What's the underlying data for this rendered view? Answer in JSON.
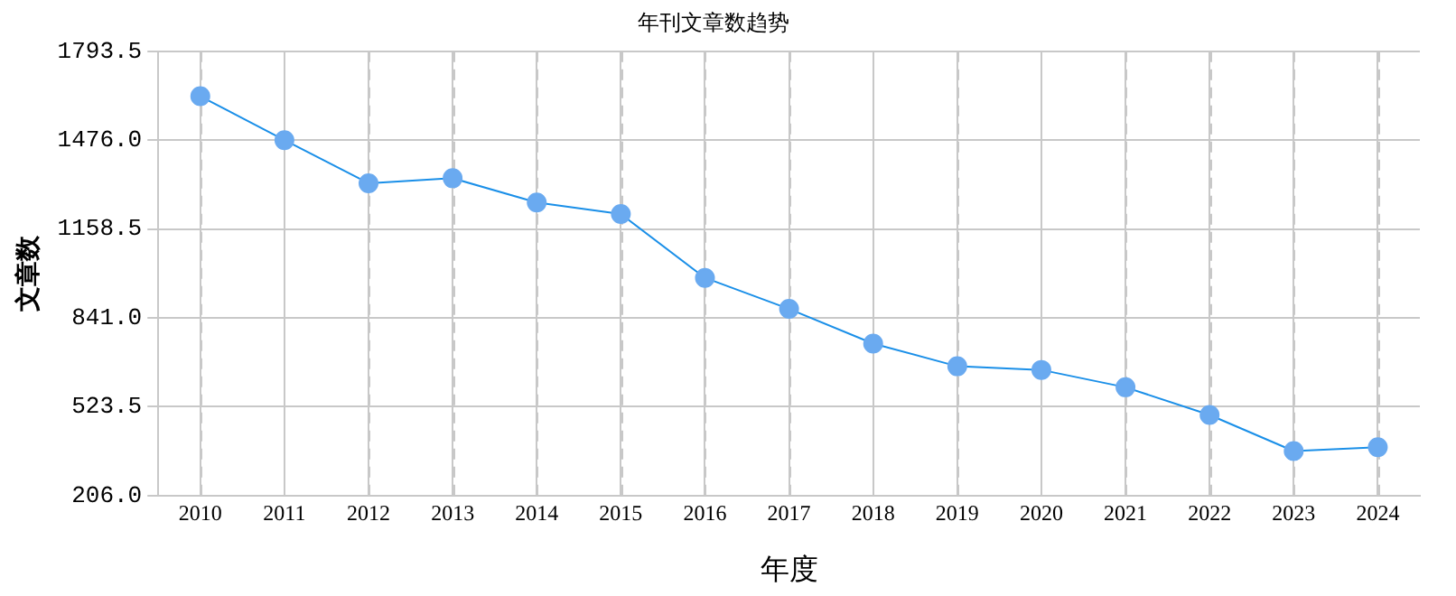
{
  "chart_data": {
    "type": "line",
    "title": "年刊文章数趋势",
    "xlabel": "年度",
    "ylabel": "文章数",
    "categories": [
      "2010",
      "2011",
      "2012",
      "2013",
      "2014",
      "2015",
      "2016",
      "2017",
      "2018",
      "2019",
      "2020",
      "2021",
      "2022",
      "2023",
      "2024"
    ],
    "series": [
      {
        "color": "#1a8fe8",
        "values": [
          1633,
          1476,
          1322,
          1340,
          1253,
          1212,
          984,
          873,
          749,
          668,
          655,
          593,
          494,
          365,
          379
        ]
      }
    ],
    "ylim": [
      206,
      1793.5
    ],
    "yticks": [
      {
        "value": 206,
        "label": "206.0"
      },
      523.5,
      {
        "value": 841,
        "label": "841.0"
      },
      1158.5,
      {
        "value": 1476,
        "label": "1476.0"
      },
      1793.5
    ],
    "grid": true,
    "legend": false,
    "marker": "circle",
    "line_style": "solid"
  }
}
